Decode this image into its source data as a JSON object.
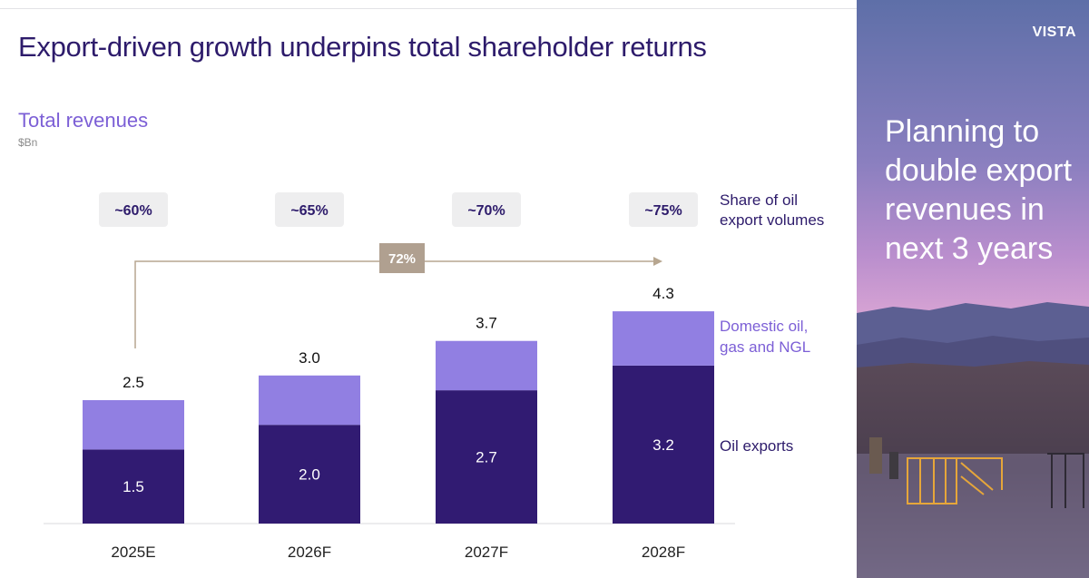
{
  "header": {
    "title": "Export-driven growth underpins total shareholder returns",
    "chart_title": "Total revenues",
    "unit": "$Bn"
  },
  "sidebar": {
    "brand": "VISTA",
    "tagline": "Planning to double export revenues in next 3 years"
  },
  "chart_data": {
    "type": "bar",
    "stacked": true,
    "title": "Total revenues",
    "ylabel": "$Bn",
    "categories": [
      "2025E",
      "2026F",
      "2027F",
      "2028F"
    ],
    "totals": [
      2.5,
      3.0,
      3.7,
      4.3
    ],
    "totals_labels": [
      "2.5",
      "3.0",
      "3.7",
      "4.3"
    ],
    "series": [
      {
        "name": "Oil exports",
        "values": [
          1.5,
          2.0,
          2.7,
          3.2
        ],
        "labels": [
          "1.5",
          "2.0",
          "2.7",
          "3.2"
        ],
        "color": "#311b72"
      },
      {
        "name": "Domestic oil, gas and NGL",
        "values": [
          1.0,
          1.0,
          1.0,
          1.1
        ],
        "color": "#917fe2"
      }
    ],
    "share_row_label": "Share of oil export volumes",
    "share_values": [
      "~60%",
      "~65%",
      "~70%",
      "~75%"
    ],
    "cagr_label": "72%",
    "legend_placement": "right",
    "grid": false,
    "ylim": [
      0,
      4.3
    ]
  }
}
